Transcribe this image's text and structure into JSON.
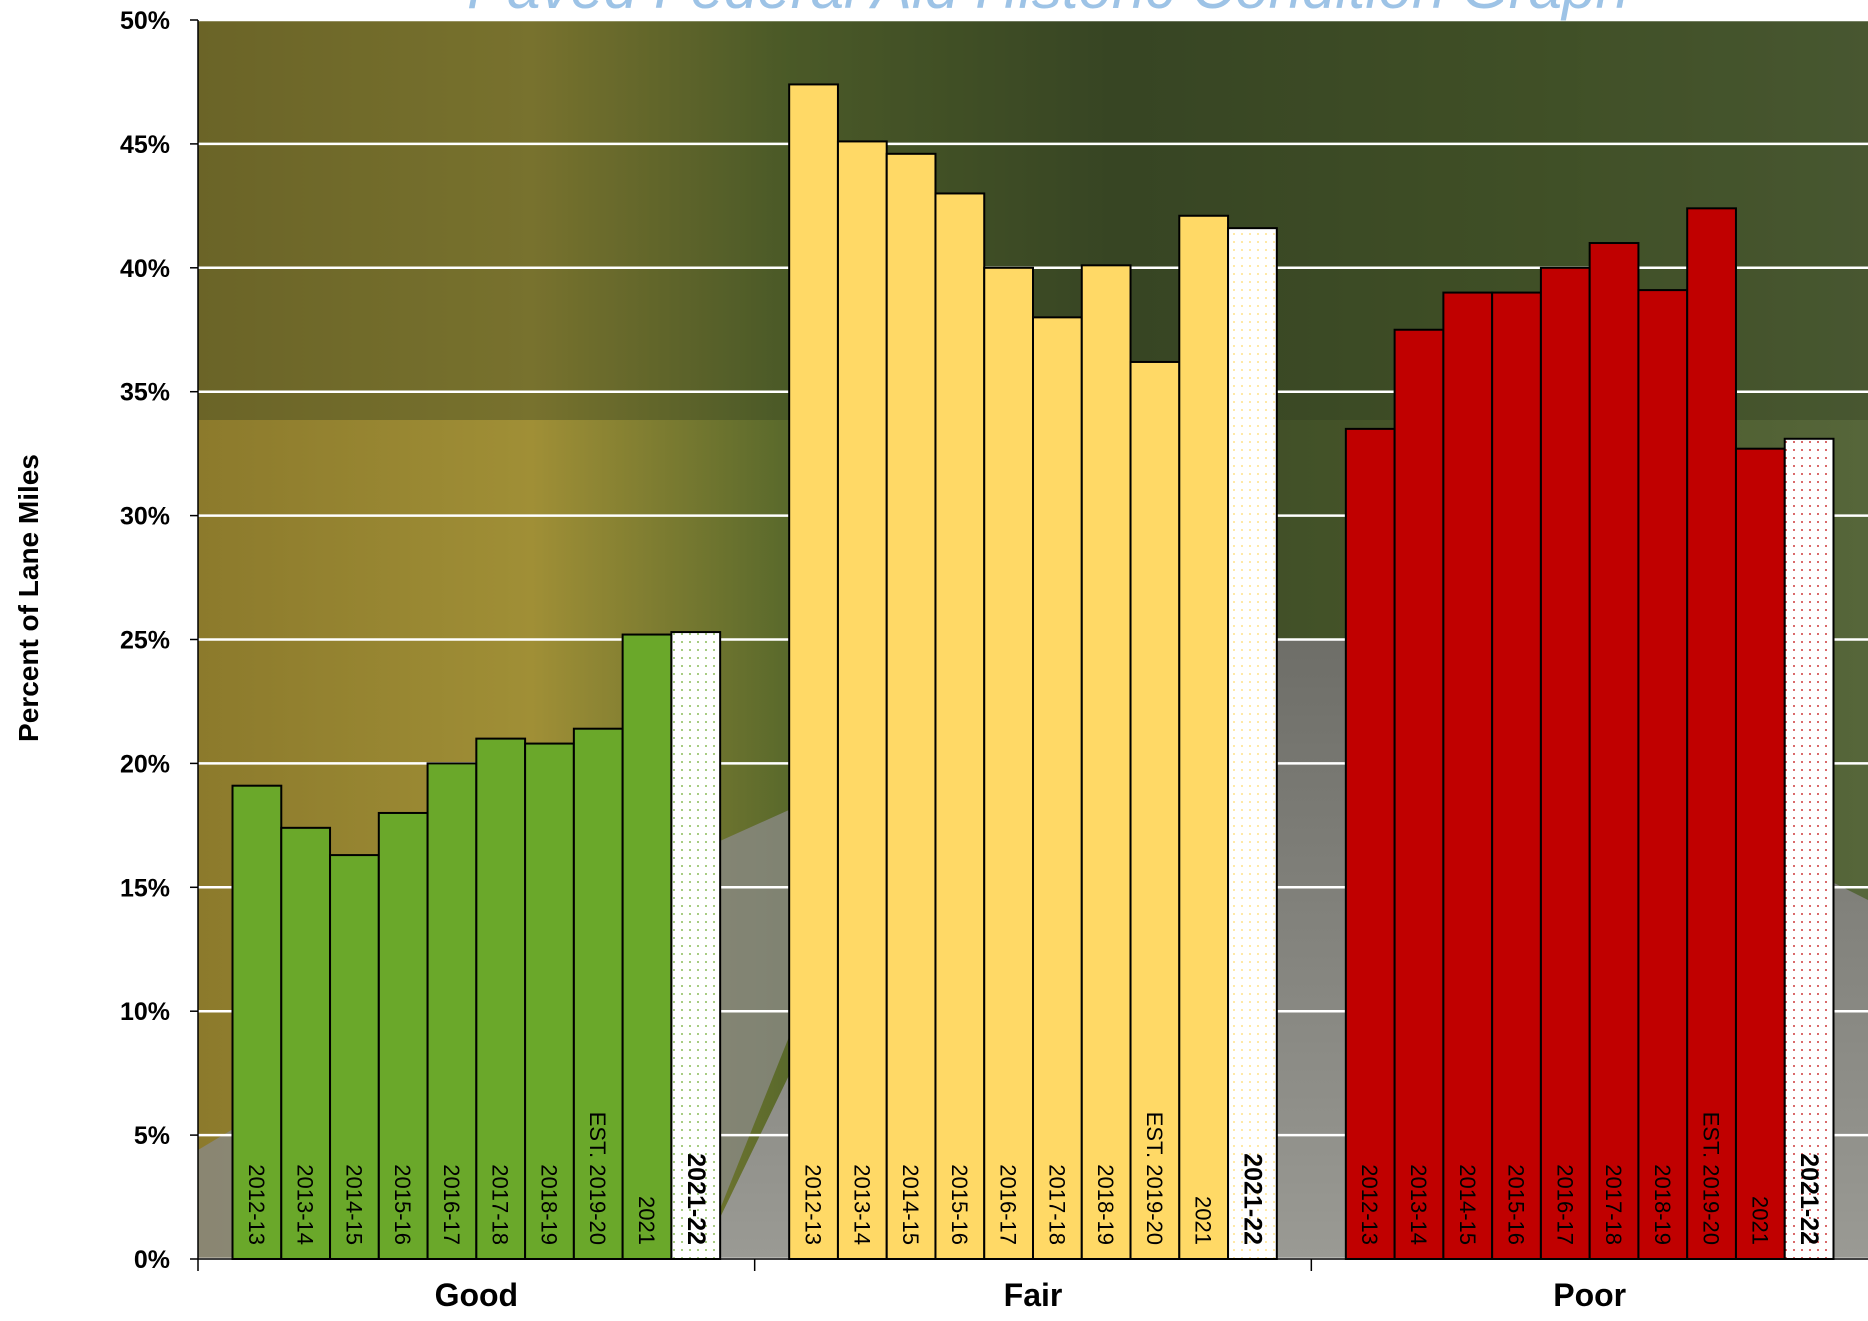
{
  "chart_data": {
    "type": "bar",
    "title": "Paved Federal Aid Historic Condition Graph",
    "y_label": "Percent of Lane Miles",
    "categories": [
      "Good",
      "Fair",
      "Poor"
    ],
    "colors": [
      "#6aa82a",
      "#ffd966",
      "#c00000"
    ],
    "series": [
      {
        "name": "2012-13",
        "values": [
          19.1,
          47.4,
          33.5
        ]
      },
      {
        "name": "2013-14",
        "values": [
          17.4,
          45.1,
          37.5
        ]
      },
      {
        "name": "2014-15",
        "values": [
          16.3,
          44.6,
          39.0
        ]
      },
      {
        "name": "2015-16",
        "values": [
          18.0,
          43.0,
          39.0
        ]
      },
      {
        "name": "2016-17",
        "values": [
          20.0,
          40.0,
          40.0
        ]
      },
      {
        "name": "2017-18",
        "values": [
          21.0,
          38.0,
          41.0
        ]
      },
      {
        "name": "2018-19",
        "values": [
          20.8,
          40.1,
          39.1
        ]
      },
      {
        "name": "EST. 2019-20",
        "values": [
          21.4,
          36.2,
          42.4
        ]
      },
      {
        "name": "2021",
        "values": [
          25.2,
          42.1,
          32.7
        ]
      },
      {
        "name": "2021-22",
        "values": [
          25.3,
          41.6,
          33.1
        ],
        "fill": "dotted"
      }
    ],
    "ylim": [
      0,
      50
    ],
    "yticks": [
      {
        "value": 0,
        "label": "0%"
      },
      {
        "value": 5,
        "label": "5%"
      },
      {
        "value": 10,
        "label": "10%"
      },
      {
        "value": 15,
        "label": "15%"
      },
      {
        "value": 20,
        "label": "20%"
      },
      {
        "value": 25,
        "label": "25%"
      },
      {
        "value": 30,
        "label": "30%"
      },
      {
        "value": 35,
        "label": "35%"
      },
      {
        "value": 40,
        "label": "40%"
      },
      {
        "value": 45,
        "label": "45%"
      },
      {
        "value": 50,
        "label": "50%"
      }
    ],
    "grid": true
  }
}
